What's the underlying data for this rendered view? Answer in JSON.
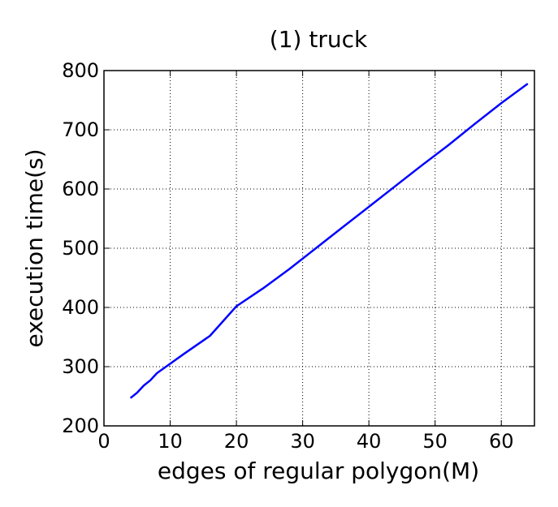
{
  "chart_data": {
    "type": "line",
    "title": "(1) truck",
    "xlabel": "edges of regular polygon(M)",
    "ylabel": "execution time(s)",
    "xlim": [
      0,
      65
    ],
    "ylim": [
      200,
      800
    ],
    "xticks": [
      0,
      10,
      20,
      30,
      40,
      50,
      60
    ],
    "yticks": [
      200,
      300,
      400,
      500,
      600,
      700,
      800
    ],
    "grid": true,
    "series": [
      {
        "color": "#0000ff",
        "x": [
          4,
          5,
          6,
          7,
          8,
          10,
          12,
          16,
          20,
          24,
          28,
          32,
          36,
          40,
          44,
          48,
          52,
          56,
          60,
          64
        ],
        "y": [
          247,
          256,
          268,
          277,
          289,
          305,
          321,
          352,
          402,
          432,
          465,
          500,
          535,
          570,
          605,
          640,
          674,
          710,
          745,
          778
        ]
      }
    ]
  }
}
